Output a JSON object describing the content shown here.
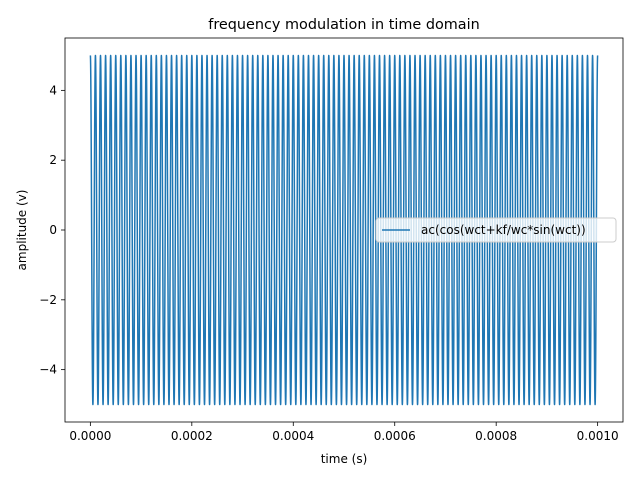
{
  "chart_data": {
    "type": "line",
    "title": "frequency modulation in time domain",
    "xlabel": "time (s)",
    "ylabel": "amplitude (v)",
    "xlim": [
      -5e-05,
      0.00105
    ],
    "ylim": [
      -5.5,
      5.5
    ],
    "xticks": [
      0,
      0.0002,
      0.0004,
      0.0006,
      0.0008,
      0.001
    ],
    "xtick_labels": [
      "0.0000",
      "0.0002",
      "0.0004",
      "0.0006",
      "0.0008",
      "0.0010"
    ],
    "yticks": [
      -4,
      -2,
      0,
      2,
      4
    ],
    "ytick_labels": [
      "−4",
      "−2",
      "0",
      "2",
      "4"
    ],
    "grid": false,
    "legend_placement": "center-right",
    "series": [
      {
        "name": "ac(cos(wct+kf/wc*sin(wct))",
        "color": "#1f77b4",
        "amplitude": 5,
        "x_range": [
          0,
          0.001
        ],
        "cycles": 100
      }
    ]
  }
}
